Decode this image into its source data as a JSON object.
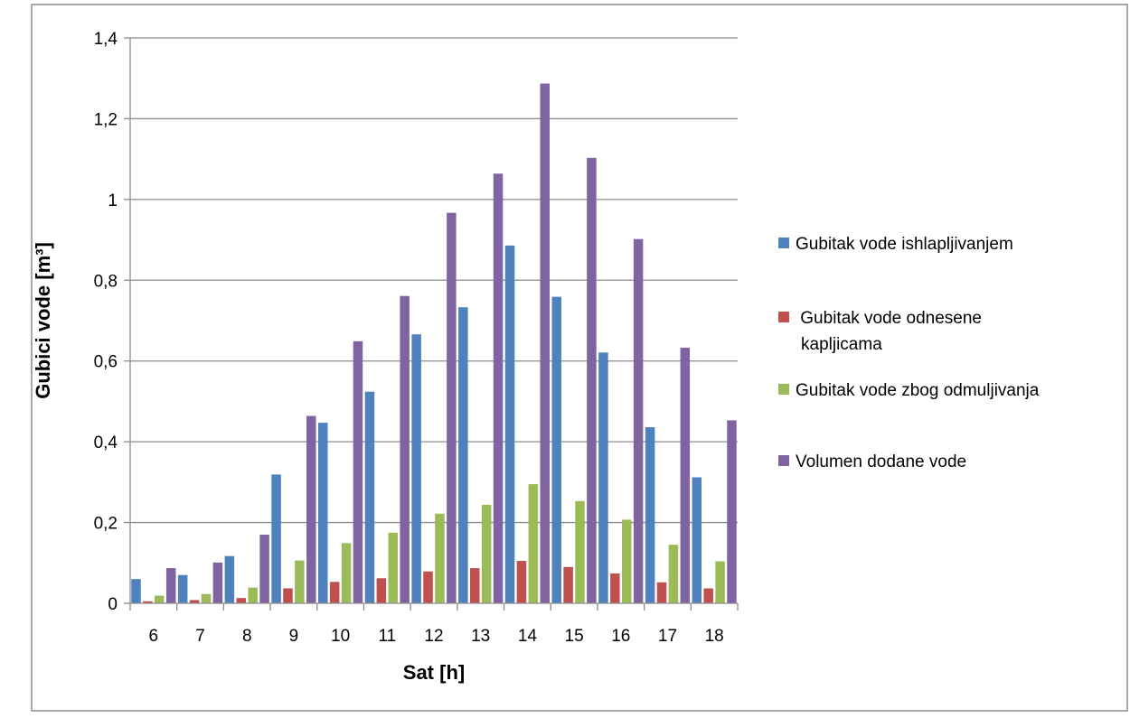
{
  "chart_data": {
    "type": "bar",
    "xlabel": "Sat [h]",
    "ylabel": "Gubici vode [m³]",
    "ylim": [
      0,
      1.4
    ],
    "yticks": [
      0,
      0.2,
      0.4,
      0.6,
      0.8,
      1,
      1.2,
      1.4
    ],
    "ytick_labels": [
      "0",
      "0,2",
      "0,4",
      "0,6",
      "0,8",
      "1",
      "1,2",
      "1,4"
    ],
    "grid": true,
    "legend_position": "right",
    "categories": [
      "6",
      "7",
      "8",
      "9",
      "10",
      "11",
      "12",
      "13",
      "14",
      "15",
      "16",
      "17",
      "18"
    ],
    "series": [
      {
        "name": "Gubitak vode ishlapljivanjem",
        "color": "#4F81BD",
        "values": [
          0.06,
          0.07,
          0.117,
          0.319,
          0.447,
          0.524,
          0.666,
          0.733,
          0.886,
          0.759,
          0.621,
          0.436,
          0.312
        ]
      },
      {
        "name": " Gubitak vode odnesene kapljicama",
        "name_lines": [
          " Gubitak vode odnesene",
          "kapljicama"
        ],
        "color": "#C0504D",
        "values": [
          0.005,
          0.008,
          0.013,
          0.037,
          0.053,
          0.062,
          0.079,
          0.087,
          0.105,
          0.09,
          0.074,
          0.052,
          0.037
        ]
      },
      {
        "name": "Gubitak vode zbog odmuljivanja",
        "color": "#9BBB59",
        "values": [
          0.019,
          0.023,
          0.039,
          0.106,
          0.149,
          0.175,
          0.222,
          0.244,
          0.295,
          0.253,
          0.207,
          0.145,
          0.104
        ]
      },
      {
        "name": "Volumen dodane vode",
        "color": "#8064A2",
        "values": [
          0.087,
          0.101,
          0.17,
          0.464,
          0.649,
          0.761,
          0.967,
          1.064,
          1.287,
          1.103,
          0.902,
          0.633,
          0.453
        ]
      }
    ]
  }
}
